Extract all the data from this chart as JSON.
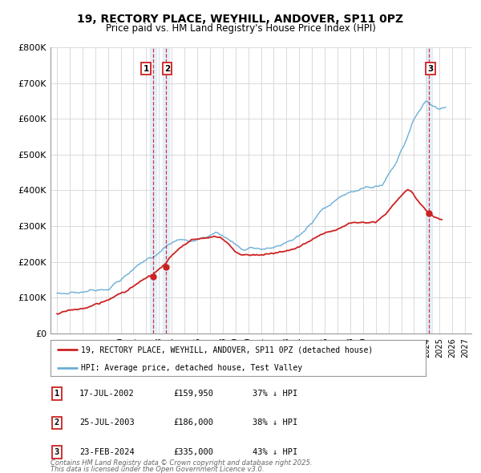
{
  "title1": "19, RECTORY PLACE, WEYHILL, ANDOVER, SP11 0PZ",
  "title2": "Price paid vs. HM Land Registry's House Price Index (HPI)",
  "transactions": [
    {
      "num": "1",
      "date_str": "17-JUL-2002",
      "decimal": 2002.54,
      "price": 159950,
      "price_str": "£159,950",
      "pct": "37% ↓ HPI"
    },
    {
      "num": "2",
      "date_str": "25-JUL-2003",
      "decimal": 2003.57,
      "price": 186000,
      "price_str": "£186,000",
      "pct": "38% ↓ HPI"
    },
    {
      "num": "3",
      "date_str": "23-FEB-2024",
      "decimal": 2024.14,
      "price": 335000,
      "price_str": "£335,000",
      "pct": "43% ↓ HPI"
    }
  ],
  "legend1": "19, RECTORY PLACE, WEYHILL, ANDOVER, SP11 0PZ (detached house)",
  "legend2": "HPI: Average price, detached house, Test Valley",
  "footer1": "Contains HM Land Registry data © Crown copyright and database right 2025.",
  "footer2": "This data is licensed under the Open Government Licence v3.0.",
  "hpi_color": "#6baed6",
  "price_color": "#cc2222",
  "vline_color": "#cc2222",
  "shade_color": "#d0e4f7",
  "ylim_max": 800000,
  "yticks": [
    0,
    100000,
    200000,
    300000,
    400000,
    500000,
    600000,
    700000,
    800000
  ],
  "ytick_labels": [
    "£0",
    "£100K",
    "£200K",
    "£300K",
    "£400K",
    "£500K",
    "£600K",
    "£700K",
    "£800K"
  ],
  "xmin": 1994.5,
  "xmax": 2027.5,
  "xticks_start": 1995,
  "xticks_end": 2027,
  "bg_color": "#ffffff",
  "grid_color": "#cccccc"
}
